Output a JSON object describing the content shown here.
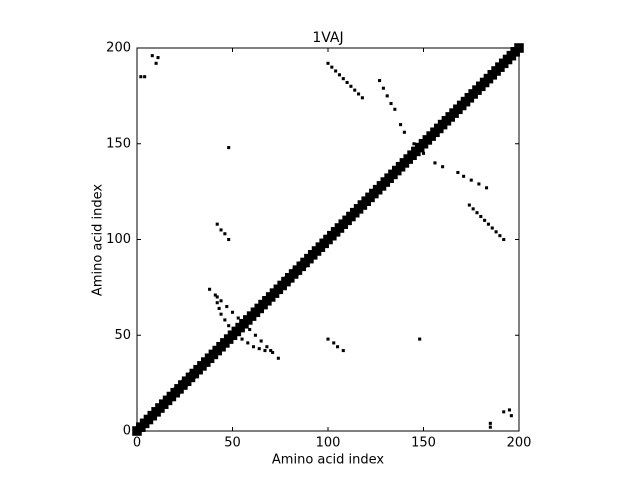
{
  "chart_data": {
    "type": "scatter",
    "title": "1VAJ",
    "xlabel": "Amino acid index",
    "ylabel": "Amino acid index",
    "xlim": [
      0,
      200
    ],
    "ylim": [
      0,
      200
    ],
    "xticks": [
      0,
      50,
      100,
      150,
      200
    ],
    "yticks": [
      0,
      50,
      100,
      150,
      200
    ],
    "marker": "square",
    "series": [
      {
        "color": "#000000",
        "marker_size": 5,
        "x": [
          0,
          2,
          4,
          6,
          8,
          10,
          12,
          14,
          16,
          18,
          20,
          22,
          24,
          26,
          28,
          30,
          32,
          34,
          36,
          38,
          40,
          42,
          44,
          46,
          48,
          50,
          52,
          54,
          56,
          58,
          60,
          62,
          64,
          66,
          68,
          70,
          72,
          74,
          76,
          78,
          80,
          82,
          84,
          86,
          88,
          90,
          92,
          94,
          96,
          98,
          100,
          102,
          104,
          106,
          108,
          110,
          112,
          114,
          116,
          118,
          120,
          122,
          124,
          126,
          128,
          130,
          132,
          134,
          136,
          138,
          140,
          142,
          144,
          146,
          148,
          150,
          152,
          154,
          156,
          158,
          160,
          162,
          164,
          166,
          168,
          170,
          172,
          174,
          176,
          178,
          180,
          182,
          184,
          186,
          188,
          190,
          192,
          194,
          196,
          198,
          200
        ],
        "y": [
          0,
          2,
          4,
          6,
          8,
          10,
          12,
          14,
          16,
          18,
          20,
          22,
          24,
          26,
          28,
          30,
          32,
          34,
          36,
          38,
          40,
          42,
          44,
          46,
          48,
          50,
          52,
          54,
          56,
          58,
          60,
          62,
          64,
          66,
          68,
          70,
          72,
          74,
          76,
          78,
          80,
          82,
          84,
          86,
          88,
          90,
          92,
          94,
          96,
          98,
          100,
          102,
          104,
          106,
          108,
          110,
          112,
          114,
          116,
          118,
          120,
          122,
          124,
          126,
          128,
          130,
          132,
          134,
          136,
          138,
          140,
          142,
          144,
          146,
          148,
          150,
          152,
          154,
          156,
          158,
          160,
          162,
          164,
          166,
          168,
          170,
          172,
          174,
          176,
          178,
          180,
          182,
          184,
          186,
          188,
          190,
          192,
          194,
          196,
          198,
          200
        ]
      },
      {
        "color": "#000000",
        "marker_size": 1.6,
        "x": [
          100,
          102,
          104,
          106,
          108,
          110,
          112,
          114,
          116,
          118,
          192,
          190,
          188,
          186,
          184,
          182,
          180,
          178,
          176,
          174,
          127,
          129,
          131,
          133,
          135,
          183,
          179,
          175,
          171,
          168,
          42,
          44,
          46,
          48,
          108,
          105,
          103,
          100,
          38,
          41,
          44,
          47,
          50,
          53,
          56,
          74,
          71,
          68,
          65,
          62,
          59,
          57,
          55,
          58,
          61,
          64,
          67,
          70,
          48,
          46,
          44,
          43,
          42,
          42,
          2,
          4,
          8,
          11,
          10,
          48,
          185,
          185,
          196,
          195,
          192,
          148,
          150,
          156,
          160,
          145,
          140,
          138,
          20,
          24,
          28,
          22,
          26,
          30,
          80,
          84,
          88,
          78,
          82,
          86
        ],
        "y": [
          192,
          190,
          188,
          186,
          184,
          182,
          180,
          178,
          176,
          174,
          100,
          102,
          104,
          106,
          108,
          110,
          112,
          114,
          116,
          118,
          183,
          179,
          175,
          171,
          168,
          127,
          129,
          131,
          133,
          135,
          108,
          105,
          103,
          100,
          42,
          44,
          46,
          48,
          74,
          71,
          68,
          65,
          62,
          59,
          57,
          38,
          41,
          44,
          47,
          50,
          53,
          56,
          48,
          46,
          44,
          43,
          42,
          42,
          55,
          58,
          61,
          64,
          67,
          70,
          185,
          185,
          196,
          195,
          192,
          148,
          2,
          4,
          8,
          11,
          10,
          48,
          145,
          140,
          138,
          150,
          156,
          160,
          22,
          26,
          30,
          20,
          24,
          28,
          78,
          82,
          86,
          80,
          84,
          88
        ]
      }
    ]
  }
}
